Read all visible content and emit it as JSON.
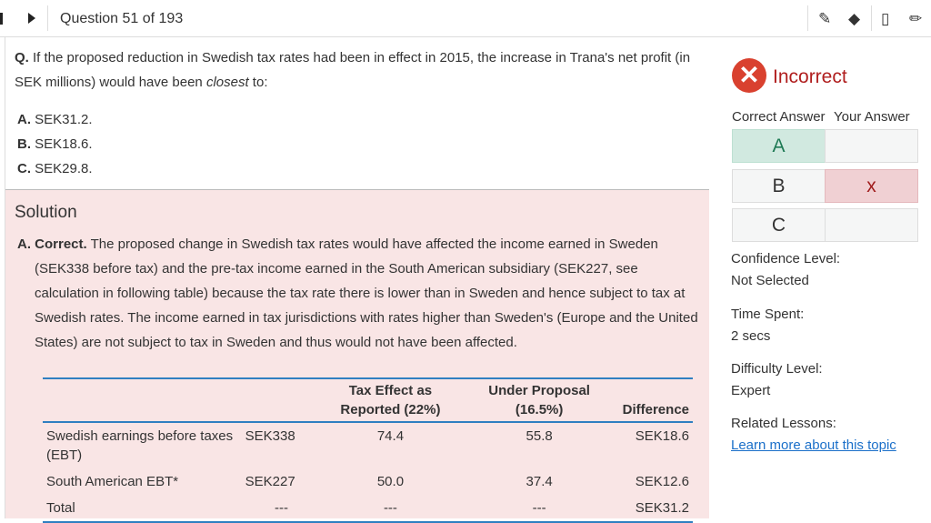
{
  "header": {
    "question_counter": "Question 51 of 193",
    "icons": [
      "previous-icon",
      "next-icon",
      "highlighter-icon",
      "eraser-icon",
      "bookmark-icon",
      "pencil-icon"
    ]
  },
  "question": {
    "prefix": "Q.",
    "text_before": " If the proposed reduction in Swedish tax rates had been in effect in 2015, the increase in Trana's net profit (in SEK millions) would have been ",
    "emphasis": "closest",
    "text_after": " to:",
    "options": [
      {
        "letter": "A.",
        "text": " SEK31.2."
      },
      {
        "letter": "B.",
        "text": " SEK18.6."
      },
      {
        "letter": "C.",
        "text": " SEK29.8."
      }
    ]
  },
  "solution": {
    "title": "Solution",
    "lead": "A. Correct.",
    "text": " The proposed change in Swedish tax rates would have affected the income earned in Sweden (SEK338 before tax) and the pre-tax income earned in the South American subsidiary (SEK227, see calculation in following table) because the tax rate there is lower than in Sweden and hence subject to tax at Swedish rates. The income earned in tax jurisdictions with rates higher than Sweden's (Europe and the United States) are not subject to tax in Sweden and thus would not have been affected.",
    "table": {
      "headers": [
        "",
        "",
        "Tax Effect as Reported (22%)",
        "Under Proposal (16.5%)",
        "Difference"
      ],
      "rows": [
        [
          "Swedish earnings before taxes (EBT)",
          "SEK338",
          "74.4",
          "55.8",
          "SEK18.6"
        ],
        [
          "South American EBT*",
          "SEK227",
          "50.0",
          "37.4",
          "SEK12.6"
        ],
        [
          "Total",
          "---",
          "---",
          "---",
          "SEK31.2"
        ]
      ]
    }
  },
  "result": {
    "status": "Incorrect",
    "correct_header": "Correct Answer",
    "your_header": "Your Answer",
    "answers": [
      {
        "letter": "A",
        "mark": ""
      },
      {
        "letter": "B",
        "mark": "x"
      },
      {
        "letter": "C",
        "mark": ""
      }
    ],
    "confidence_label": "Confidence Level:",
    "confidence_value": "Not Selected",
    "time_label": "Time Spent:",
    "time_value": "2 secs",
    "difficulty_label": "Difficulty Level:",
    "difficulty_value": "Expert",
    "lessons_label": "Related Lessons:",
    "lessons_link": "Learn more about this topic"
  },
  "colors": {
    "accent": "#2f7fc1",
    "incorrect": "#b01e1e",
    "correct_bg": "#d1e9e0",
    "wrong_bg": "#f0d0d3",
    "solution_bg": "#f9e5e5"
  }
}
